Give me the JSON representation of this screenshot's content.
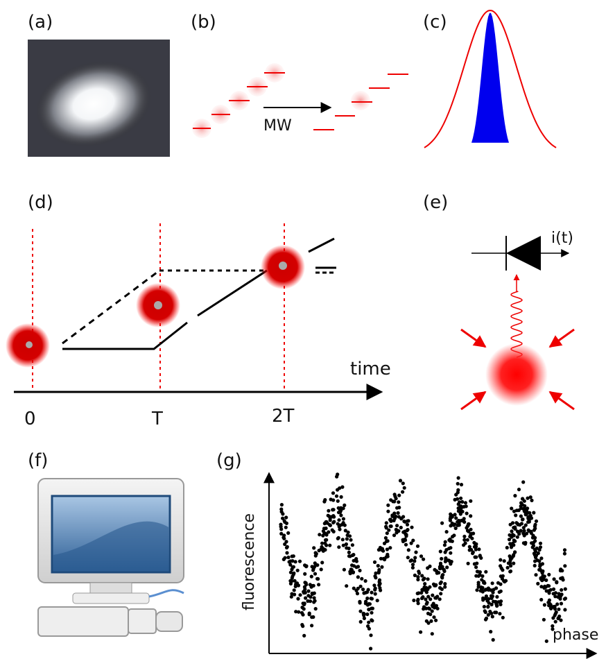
{
  "panels": {
    "a": "(a)",
    "b": "(b)",
    "c": "(c)",
    "d": "(d)",
    "e": "(e)",
    "f": "(f)",
    "g": "(g)"
  },
  "b": {
    "arrow_label": "MW"
  },
  "d": {
    "axis_label": "time",
    "ticks": [
      "0",
      "T",
      "2T"
    ]
  },
  "e": {
    "current_label": "i(t)"
  },
  "g": {
    "y_label": "fluorescence",
    "x_label": "phase"
  }
}
